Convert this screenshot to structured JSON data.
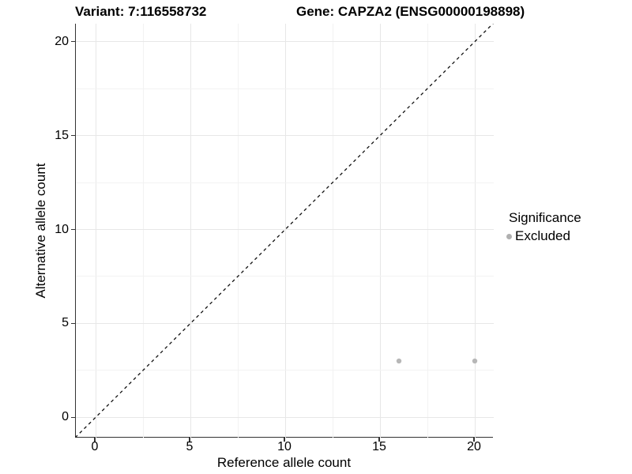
{
  "chart_data": {
    "type": "scatter",
    "title_left": "Variant: 7:116558732",
    "title_right": "Gene: CAPZA2 (ENSG00000198898)",
    "xlabel": "Reference allele count",
    "ylabel": "Alternative allele count",
    "x_ticks": [
      0,
      5,
      10,
      15,
      20
    ],
    "y_ticks": [
      0,
      5,
      10,
      15,
      20
    ],
    "xlim": [
      -1.05,
      21.0
    ],
    "ylim": [
      -1.1,
      21.0
    ],
    "grid": {
      "major_color": "#e7e7e7",
      "minor_color": "#f2f2f2",
      "minor_between_majors": true
    },
    "identity_line": {
      "type": "abline",
      "slope": 1,
      "intercept": 0,
      "style": "dashed",
      "color": "#111111"
    },
    "series": [
      {
        "name": "Excluded",
        "color": "#b7b7b7",
        "points": [
          {
            "x": 16,
            "y": 3
          },
          {
            "x": 20,
            "y": 3
          }
        ]
      }
    ],
    "legend": {
      "position": "right",
      "title": "Significance",
      "items": [
        {
          "label": "Excluded",
          "color": "#b0b0b0"
        }
      ]
    }
  }
}
